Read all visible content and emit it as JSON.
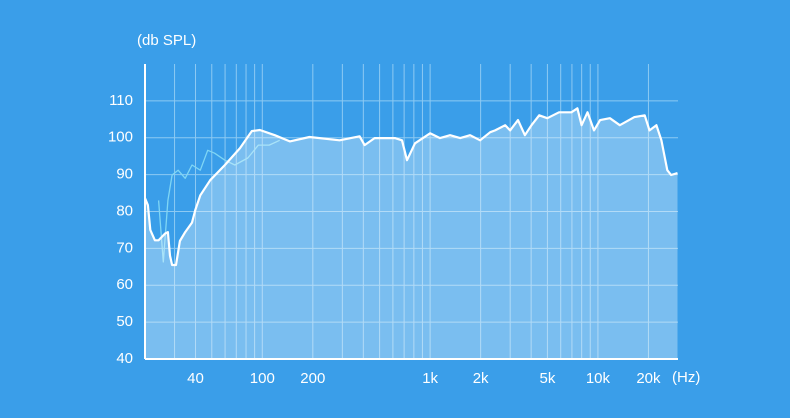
{
  "chart_data": {
    "type": "line",
    "y_label": "(db SPL)",
    "x_label": "(Hz)",
    "log_x": true,
    "xlim": [
      20,
      30000
    ],
    "ylim": [
      40,
      120
    ],
    "xticks": [
      40,
      100,
      200,
      {
        "value": 1000,
        "label": "1k"
      },
      {
        "value": 2000,
        "label": "2k"
      },
      {
        "value": 5000,
        "label": "5k"
      },
      {
        "value": 10000,
        "label": "10k"
      },
      {
        "value": 20000,
        "label": "20k"
      }
    ],
    "xminor": [
      30,
      50,
      60,
      70,
      80,
      90,
      300,
      400,
      500,
      600,
      700,
      800,
      900,
      3000,
      4000,
      6000,
      7000,
      8000,
      9000
    ],
    "yticks": [
      40,
      50,
      60,
      70,
      80,
      90,
      100,
      110
    ],
    "grid": true,
    "series": [
      {
        "color": "#ffffff",
        "fill": true,
        "x": [
          20,
          20.8,
          21.5,
          22.9,
          24.1,
          26.3,
          27.4,
          28.2,
          29,
          30.6,
          32.3,
          34.7,
          38.1,
          39.9,
          42.7,
          48.9,
          59.9,
          73.6,
          86.6,
          96.8,
          118.7,
          145.8,
          191,
          289,
          380,
          407,
          467,
          617,
          680,
          728,
          813,
          1000,
          1146,
          1316,
          1510,
          1732,
          1985,
          2280,
          2440,
          2800,
          2995,
          3340,
          3670,
          4020,
          4470,
          4990,
          5860,
          6950,
          7540,
          7990,
          8670,
          9480,
          10300,
          11780,
          13500,
          16500,
          19000,
          20300,
          22300,
          23900,
          25900,
          27300,
          29800
        ],
        "values": [
          83.6,
          81.7,
          75,
          72.2,
          72.2,
          74,
          74.4,
          68,
          65.5,
          65.5,
          72,
          74.4,
          77,
          80.4,
          84.4,
          88.5,
          92.6,
          97.2,
          101.8,
          102.1,
          100.7,
          99,
          100.2,
          99.3,
          100.4,
          98,
          99.9,
          99.9,
          99.3,
          93.9,
          98.5,
          101.2,
          99.9,
          100.7,
          99.9,
          100.7,
          99.3,
          101.5,
          102,
          103.4,
          102,
          104.8,
          100.7,
          103.4,
          106.1,
          105.3,
          106.9,
          106.9,
          108,
          103.4,
          106.9,
          102,
          104.8,
          105.3,
          103.4,
          105.6,
          106.1,
          102,
          103.4,
          99.3,
          91.2,
          89.9,
          90.4
        ]
      },
      {
        "color": "#7fd6f5",
        "fill": false,
        "x": [
          24.1,
          25.7,
          27.4,
          29,
          31.5,
          34.7,
          38.1,
          42.7,
          47.3,
          52,
          59.9,
          68.6,
          82,
          94.8,
          110,
          127
        ],
        "values": [
          83,
          66.3,
          83,
          89.9,
          91.2,
          89,
          92.6,
          91.2,
          96.6,
          95.8,
          93.9,
          92.6,
          94.5,
          98,
          98,
          99.3
        ]
      }
    ]
  }
}
